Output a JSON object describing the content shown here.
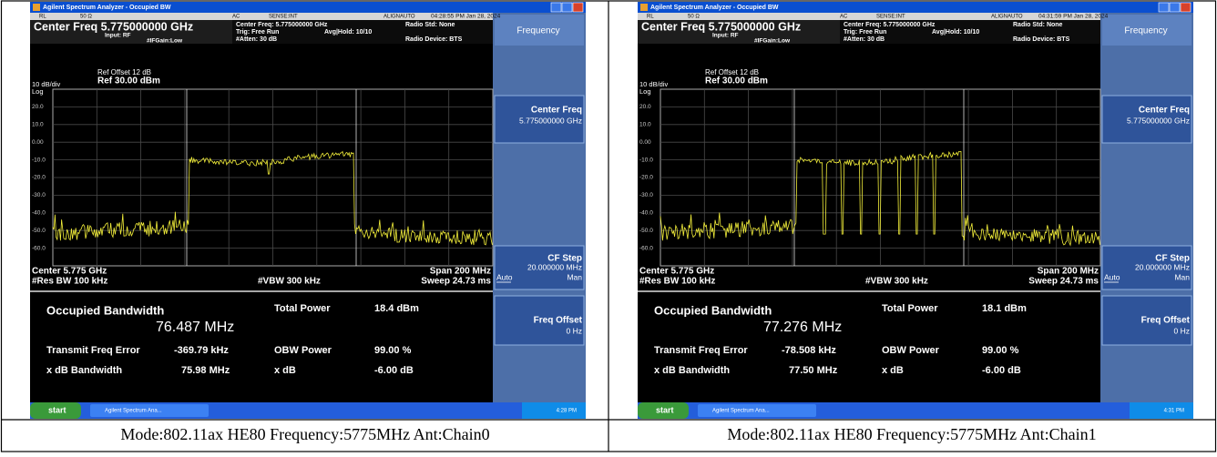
{
  "panels": [
    {
      "window_title": "Agilent Spectrum Analyzer - Occupied BW",
      "rl": "RL",
      "impedance": "50 Ω",
      "coupling": "AC",
      "sense": "SENSE:INT",
      "align": "ALIGNAUTO",
      "timestamp": "04:28:55 PM Jan 28, 2024",
      "center_freq": "Center Freq 5.775000000 GHz",
      "input": "Input: RF",
      "ifgain": "#IFGain:Low",
      "center_freq_small": "Center Freq: 5.775000000 GHz",
      "trig": "Trig: Free Run",
      "atten": "#Atten: 30 dB",
      "avg": "Avg|Hold: 10/10",
      "radio_std": "Radio Std: None",
      "radio_device": "Radio Device: BTS",
      "scale": "10 dB/div",
      "log": "Log",
      "ref_offset": "Ref Offset 12 dB",
      "ref": "Ref 30.00 dBm",
      "y_labels": [
        "20.0",
        "10.0",
        "0.00",
        "-10.0",
        "-20.0",
        "-30.0",
        "-40.0",
        "-50.0",
        "-60.0"
      ],
      "center": "Center 5.775 GHz",
      "res_bw": "#Res BW 100 kHz",
      "vbw": "#VBW 300 kHz",
      "span": "Span 200 MHz",
      "sweep": "Sweep 24.73 ms",
      "obw_label": "Occupied Bandwidth",
      "obw_value": "76.487 MHz",
      "total_power_label": "Total Power",
      "total_power": "18.4 dBm",
      "tfe_label": "Transmit Freq Error",
      "tfe": "-369.79 kHz",
      "obw_power_label": "OBW Power",
      "obw_power": "99.00 %",
      "xdb_bw_label": "x dB Bandwidth",
      "xdb_bw": "75.98 MHz",
      "xdb_label": "x dB",
      "xdb": "-6.00 dB",
      "menu": "Frequency",
      "key_center": "Center Freq",
      "key_center_value": "5.775000000 GHz",
      "key_cfstep": "CF Step",
      "key_cfstep_value": "20.000000 MHz",
      "key_auto": "Auto",
      "key_man": "Man",
      "key_offset": "Freq Offset",
      "key_offset_value": "0 Hz",
      "start": "start",
      "task": "Agilent Spectrum Ana...",
      "clock": "4:28 PM",
      "caption": "Mode:802.11ax HE80 Frequency:5775MHz Ant:Chain0"
    },
    {
      "window_title": "Agilent Spectrum Analyzer - Occupied BW",
      "rl": "RL",
      "impedance": "50 Ω",
      "coupling": "AC",
      "sense": "SENSE:INT",
      "align": "ALIGNAUTO",
      "timestamp": "04:31:59 PM Jan 28, 2024",
      "center_freq": "Center Freq 5.775000000 GHz",
      "input": "Input: RF",
      "ifgain": "#IFGain:Low",
      "center_freq_small": "Center Freq: 5.775000000 GHz",
      "trig": "Trig: Free Run",
      "atten": "#Atten: 30 dB",
      "avg": "Avg|Hold: 10/10",
      "radio_std": "Radio Std: None",
      "radio_device": "Radio Device: BTS",
      "scale": "10 dB/div",
      "log": "Log",
      "ref_offset": "Ref Offset 12 dB",
      "ref": "Ref 30.00 dBm",
      "y_labels": [
        "20.0",
        "10.0",
        "0.00",
        "-10.0",
        "-20.0",
        "-30.0",
        "-40.0",
        "-50.0",
        "-60.0"
      ],
      "center": "Center 5.775 GHz",
      "res_bw": "#Res BW 100 kHz",
      "vbw": "#VBW 300 kHz",
      "span": "Span 200 MHz",
      "sweep": "Sweep 24.73 ms",
      "obw_label": "Occupied Bandwidth",
      "obw_value": "77.276 MHz",
      "total_power_label": "Total Power",
      "total_power": "18.1 dBm",
      "tfe_label": "Transmit Freq Error",
      "tfe": "-78.508 kHz",
      "obw_power_label": "OBW Power",
      "obw_power": "99.00 %",
      "xdb_bw_label": "x dB Bandwidth",
      "xdb_bw": "77.50 MHz",
      "xdb_label": "x dB",
      "xdb": "-6.00 dB",
      "menu": "Frequency",
      "key_center": "Center Freq",
      "key_center_value": "5.775000000 GHz",
      "key_cfstep": "CF Step",
      "key_cfstep_value": "20.000000 MHz",
      "key_auto": "Auto",
      "key_man": "Man",
      "key_offset": "Freq Offset",
      "key_offset_value": "0 Hz",
      "start": "start",
      "task": "Agilent Spectrum Ana...",
      "clock": "4:31 PM",
      "caption": "Mode:802.11ax HE80 Frequency:5775MHz Ant:Chain1"
    }
  ]
}
